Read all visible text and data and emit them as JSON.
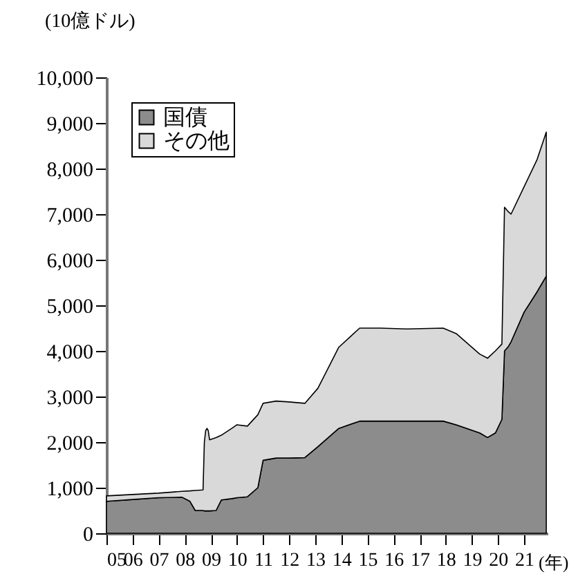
{
  "chart_data": {
    "type": "area",
    "stacked": true,
    "ylabel": "(10億ドル)",
    "xlabel": "(年)",
    "x": [
      2005.0,
      2006.0,
      2007.0,
      2007.9,
      2008.2,
      2008.4,
      2008.7,
      2008.75,
      2008.8,
      2008.85,
      2008.9,
      2008.95,
      2009.2,
      2009.4,
      2009.8,
      2010.0,
      2010.4,
      2010.8,
      2011.0,
      2011.5,
      2012.0,
      2012.6,
      2013.1,
      2013.9,
      2014.7,
      2015.5,
      2016.5,
      2017.9,
      2018.4,
      2019.3,
      2019.6,
      2019.9,
      2020.15,
      2020.25,
      2020.4,
      2020.5,
      2021.0,
      2021.5,
      2021.85
    ],
    "series": [
      {
        "name": "国債",
        "color": "#8c8c8c",
        "values": [
          700,
          740,
          780,
          790,
          700,
          500,
          500,
          490,
          490,
          490,
          490,
          490,
          500,
          730,
          760,
          780,
          800,
          1000,
          1600,
          1650,
          1650,
          1660,
          1900,
          2300,
          2460,
          2460,
          2460,
          2460,
          2380,
          2200,
          2100,
          2200,
          2500,
          4000,
          4100,
          4200,
          4850,
          5300,
          5640
        ]
      },
      {
        "name": "その他",
        "color": "#d9d9d9",
        "values": [
          120,
          110,
          100,
          130,
          230,
          440,
          450,
          1510,
          1760,
          1810,
          1760,
          1560,
          1600,
          1420,
          1540,
          1600,
          1550,
          1600,
          1250,
          1250,
          1230,
          1190,
          1280,
          1780,
          2040,
          2040,
          2020,
          2040,
          2000,
          1730,
          1740,
          1800,
          1650,
          3150,
          2950,
          2800,
          2750,
          2900,
          3160
        ]
      }
    ],
    "xlim": [
      2005,
      2021.9
    ],
    "xticks": [
      {
        "value": 2005,
        "label": "05"
      },
      {
        "value": 2006,
        "label": "06"
      },
      {
        "value": 2007,
        "label": "07"
      },
      {
        "value": 2008,
        "label": "08"
      },
      {
        "value": 2009,
        "label": "09"
      },
      {
        "value": 2010,
        "label": "10"
      },
      {
        "value": 2011,
        "label": "11"
      },
      {
        "value": 2012,
        "label": "12"
      },
      {
        "value": 2013,
        "label": "13"
      },
      {
        "value": 2014,
        "label": "14"
      },
      {
        "value": 2015,
        "label": "15"
      },
      {
        "value": 2016,
        "label": "16"
      },
      {
        "value": 2017,
        "label": "17"
      },
      {
        "value": 2018,
        "label": "18"
      },
      {
        "value": 2019,
        "label": "19"
      },
      {
        "value": 2020,
        "label": "20"
      },
      {
        "value": 2021,
        "label": "21"
      }
    ],
    "ylim": [
      0,
      10000
    ],
    "yticks": [
      0,
      {
        "value": 1000,
        "label": "1,000"
      },
      {
        "value": 2000,
        "label": "2,000"
      },
      {
        "value": 3000,
        "label": "3,000"
      },
      {
        "value": 4000,
        "label": "4,000"
      },
      {
        "value": 5000,
        "label": "5,000"
      },
      {
        "value": 6000,
        "label": "6,000"
      },
      {
        "value": 7000,
        "label": "7,000"
      },
      {
        "value": 8000,
        "label": "8,000"
      },
      {
        "value": 9000,
        "label": "9,000"
      },
      {
        "value": 10000,
        "label": "10,000"
      }
    ],
    "grid": false,
    "legend": "top left"
  }
}
